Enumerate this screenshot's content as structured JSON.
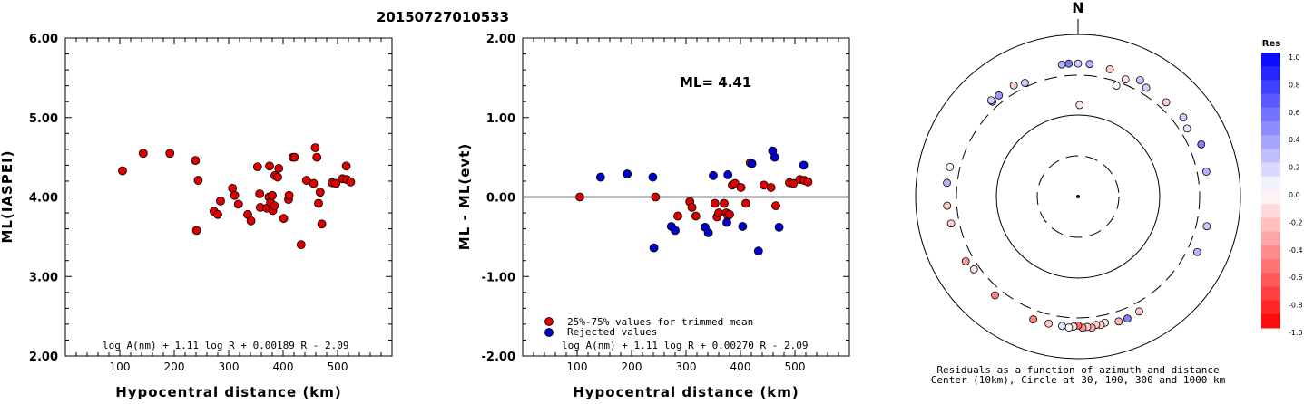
{
  "title": "20150727010533",
  "chart_data": [
    {
      "type": "scatter",
      "xlabel": "Hypocentral distance (km)",
      "ylabel": "ML(IASPEI)",
      "xlim": [
        0,
        600
      ],
      "ylim": [
        2.0,
        6.0
      ],
      "x_ticks": [
        "100",
        "200",
        "300",
        "400",
        "500"
      ],
      "y_ticks": [
        "2.00",
        "3.00",
        "4.00",
        "5.00",
        "6.00"
      ],
      "formula": "log A(nm) + 1.11 log R + 0.00189 R - 2.09",
      "series": [
        {
          "color": "#dd0000",
          "points": [
            [
              105,
              4.33
            ],
            [
              143,
              4.55
            ],
            [
              192,
              4.55
            ],
            [
              239,
              4.46
            ],
            [
              244,
              4.21
            ],
            [
              241,
              3.58
            ],
            [
              273,
              3.82
            ],
            [
              280,
              3.78
            ],
            [
              285,
              3.95
            ],
            [
              307,
              4.11
            ],
            [
              311,
              4.02
            ],
            [
              318,
              3.91
            ],
            [
              335,
              3.78
            ],
            [
              341,
              3.7
            ],
            [
              353,
              4.38
            ],
            [
              357,
              4.04
            ],
            [
              358,
              3.87
            ],
            [
              370,
              3.86
            ],
            [
              374,
              4.0
            ],
            [
              375,
              4.39
            ],
            [
              377,
              3.93
            ],
            [
              380,
              4.02
            ],
            [
              381,
              3.83
            ],
            [
              384,
              3.89
            ],
            [
              385,
              4.27
            ],
            [
              390,
              4.25
            ],
            [
              392,
              4.36
            ],
            [
              401,
              3.73
            ],
            [
              410,
              3.97
            ],
            [
              411,
              4.02
            ],
            [
              418,
              4.5
            ],
            [
              421,
              4.5
            ],
            [
              433,
              3.4
            ],
            [
              443,
              4.21
            ],
            [
              456,
              4.17
            ],
            [
              459,
              4.62
            ],
            [
              462,
              4.5
            ],
            [
              465,
              3.92
            ],
            [
              468,
              4.06
            ],
            [
              471,
              3.66
            ],
            [
              490,
              4.18
            ],
            [
              497,
              4.17
            ],
            [
              509,
              4.23
            ],
            [
              516,
              4.39
            ],
            [
              517,
              4.22
            ],
            [
              524,
              4.19
            ]
          ]
        }
      ]
    },
    {
      "type": "scatter",
      "xlabel": "Hypocentral distance (km)",
      "ylabel": "ML - ML(evt)",
      "xlim": [
        0,
        600
      ],
      "ylim": [
        -2.0,
        2.0
      ],
      "x_ticks": [
        "100",
        "200",
        "300",
        "400",
        "500"
      ],
      "y_ticks": [
        "-2.00",
        "-1.00",
        "0.00",
        "1.00",
        "2.00"
      ],
      "annotation": "ML= 4.41",
      "formula": "log A(nm) + 1.11 log R + 0.00270 R - 2.09",
      "legend": [
        {
          "label": "25%-75% values for trimmed mean",
          "color": "#dd0000"
        },
        {
          "label": "Rejected values",
          "color": "#0000cc"
        }
      ],
      "series": [
        {
          "name": "25%-75% values for trimmed mean",
          "color": "#dd0000",
          "points": [
            [
              105,
              0.0
            ],
            [
              244,
              0.0
            ],
            [
              285,
              -0.24
            ],
            [
              307,
              -0.06
            ],
            [
              311,
              -0.13
            ],
            [
              318,
              -0.24
            ],
            [
              353,
              -0.08
            ],
            [
              357,
              -0.25
            ],
            [
              360,
              -0.2
            ],
            [
              370,
              -0.08
            ],
            [
              374,
              -0.2
            ],
            [
              377,
              -0.24
            ],
            [
              380,
              -0.22
            ],
            [
              385,
              0.15
            ],
            [
              390,
              0.17
            ],
            [
              401,
              0.12
            ],
            [
              410,
              -0.08
            ],
            [
              418,
              0.43
            ],
            [
              443,
              0.15
            ],
            [
              456,
              0.12
            ],
            [
              465,
              -0.11
            ],
            [
              490,
              0.18
            ],
            [
              497,
              0.17
            ],
            [
              509,
              0.22
            ],
            [
              517,
              0.21
            ],
            [
              524,
              0.19
            ]
          ]
        },
        {
          "name": "Rejected values",
          "color": "#0000cc",
          "points": [
            [
              143,
              0.25
            ],
            [
              192,
              0.29
            ],
            [
              239,
              0.25
            ],
            [
              241,
              -0.64
            ],
            [
              273,
              -0.37
            ],
            [
              280,
              -0.42
            ],
            [
              335,
              -0.38
            ],
            [
              341,
              -0.45
            ],
            [
              350,
              0.27
            ],
            [
              375,
              -0.32
            ],
            [
              377,
              0.28
            ],
            [
              404,
              -0.37
            ],
            [
              421,
              0.42
            ],
            [
              433,
              -0.68
            ],
            [
              459,
              0.58
            ],
            [
              463,
              0.5
            ],
            [
              471,
              -0.38
            ],
            [
              516,
              0.4
            ]
          ]
        }
      ]
    },
    {
      "type": "scatter",
      "subtype": "polar-residuals",
      "north_label": "N",
      "caption_line1": "Residuals as a function of azimuth and distance",
      "caption_line2": "Center (10km), Circle at 30, 100, 300 and 1000 km",
      "colorbar_title": "Res",
      "colorbar_ticks": [
        "1.0",
        "0.8",
        "0.6",
        "0.4",
        "0.2",
        "0.0",
        "-0.2",
        "-0.4",
        "-0.6",
        "-0.8",
        "-1.0"
      ],
      "stations": [
        {
          "azimuth_deg": 1,
          "distance_km": 150,
          "residual": -0.1
        },
        {
          "azimuth_deg": 19,
          "distance_km": 280,
          "residual": 0.0
        },
        {
          "azimuth_deg": 79,
          "distance_km": 455,
          "residual": 0.3
        },
        {
          "azimuth_deg": 53,
          "distance_km": 475,
          "residual": 0.2
        },
        {
          "azimuth_deg": 43,
          "distance_km": 430,
          "residual": -0.2
        },
        {
          "azimuth_deg": 28,
          "distance_km": 480,
          "residual": 0.2
        },
        {
          "azimuth_deg": 22,
          "distance_km": 385,
          "residual": -0.1
        },
        {
          "azimuth_deg": 14,
          "distance_km": 470,
          "residual": -0.2
        },
        {
          "azimuth_deg": 5,
          "distance_km": 500,
          "residual": 0.3
        },
        {
          "azimuth_deg": 356,
          "distance_km": 505,
          "residual": 0.5
        },
        {
          "azimuth_deg": 353,
          "distance_km": 500,
          "residual": 0.3
        },
        {
          "azimuth_deg": 0,
          "distance_km": 500,
          "residual": 0.2
        },
        {
          "azimuth_deg": 32,
          "distance_km": 420,
          "residual": 0.2
        },
        {
          "azimuth_deg": 67,
          "distance_km": 510,
          "residual": 0.5
        },
        {
          "azimuth_deg": 58,
          "distance_km": 420,
          "residual": 0.1
        },
        {
          "azimuth_deg": 103,
          "distance_km": 480,
          "residual": 0.2
        },
        {
          "azimuth_deg": 115,
          "distance_km": 470,
          "residual": 0.3
        },
        {
          "azimuth_deg": 152,
          "distance_km": 450,
          "residual": -0.2
        },
        {
          "azimuth_deg": 158,
          "distance_km": 475,
          "residual": 0.5
        },
        {
          "azimuth_deg": 162,
          "distance_km": 470,
          "residual": -0.3
        },
        {
          "azimuth_deg": 168,
          "distance_km": 430,
          "residual": -0.1
        },
        {
          "azimuth_deg": 170,
          "distance_km": 455,
          "residual": -0.2
        },
        {
          "azimuth_deg": 172,
          "distance_km": 440,
          "residual": -0.2
        },
        {
          "azimuth_deg": 174,
          "distance_km": 480,
          "residual": -0.3
        },
        {
          "azimuth_deg": 176,
          "distance_km": 460,
          "residual": -0.2
        },
        {
          "azimuth_deg": 178,
          "distance_km": 470,
          "residual": -0.4
        },
        {
          "azimuth_deg": 180,
          "distance_km": 430,
          "residual": -0.6
        },
        {
          "azimuth_deg": 182,
          "distance_km": 450,
          "residual": -0.1
        },
        {
          "azimuth_deg": 184,
          "distance_km": 470,
          "residual": 0.0
        },
        {
          "azimuth_deg": 187,
          "distance_km": 455,
          "residual": 0.1
        },
        {
          "azimuth_deg": 193,
          "distance_km": 455,
          "residual": -0.2
        },
        {
          "azimuth_deg": 200,
          "distance_km": 460,
          "residual": -0.5
        },
        {
          "azimuth_deg": 220,
          "distance_km": 430,
          "residual": -0.5
        },
        {
          "azimuth_deg": 235,
          "distance_km": 395,
          "residual": -0.1
        },
        {
          "azimuth_deg": 240,
          "distance_km": 440,
          "residual": -0.4
        },
        {
          "azimuth_deg": 258,
          "distance_km": 440,
          "residual": -0.2
        },
        {
          "azimuth_deg": 266,
          "distance_km": 465,
          "residual": -0.2
        },
        {
          "azimuth_deg": 276,
          "distance_km": 475,
          "residual": 0.3
        },
        {
          "azimuth_deg": 283,
          "distance_km": 470,
          "residual": 0.0
        },
        {
          "azimuth_deg": 318,
          "distance_km": 410,
          "residual": 0.4
        },
        {
          "azimuth_deg": 322,
          "distance_km": 420,
          "residual": 0.4
        },
        {
          "azimuth_deg": 318,
          "distance_km": 440,
          "residual": 0.2
        },
        {
          "azimuth_deg": 330,
          "distance_km": 420,
          "residual": -0.2
        },
        {
          "azimuth_deg": 335,
          "distance_km": 370,
          "residual": 0.2
        }
      ]
    }
  ]
}
